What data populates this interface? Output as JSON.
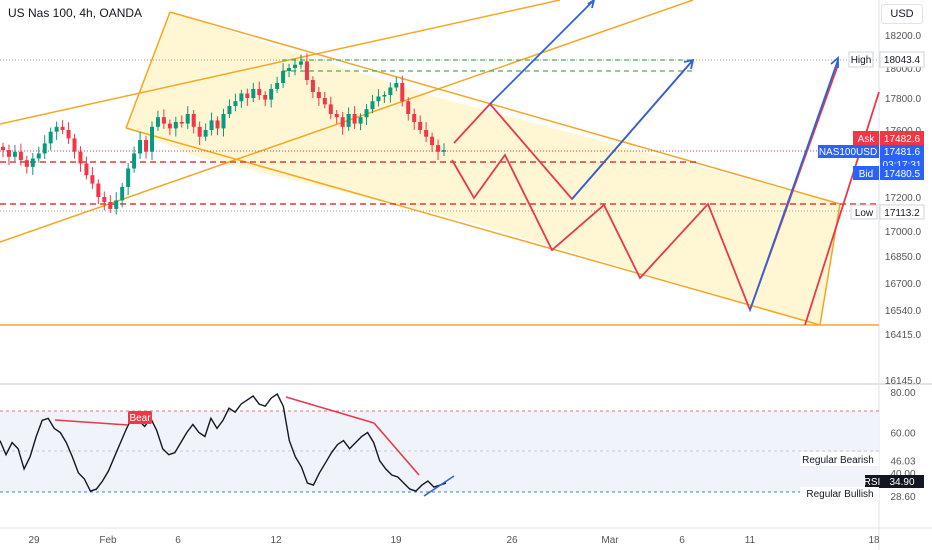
{
  "header": {
    "title": "US Nas 100, 4h, OANDA",
    "currency": "USD"
  },
  "price_axis": {
    "ticks": [
      "18200.0",
      "18000.0",
      "17800.0",
      "17600.0",
      "17200.0",
      "17000.0",
      "16850.0",
      "16700.0",
      "16540.0",
      "16415.0",
      "16145.0"
    ]
  },
  "rsi_axis": {
    "ticks": [
      "80.00",
      "60.00",
      "46.03",
      "40.00",
      "28.60"
    ]
  },
  "time_axis": {
    "ticks": [
      "29",
      "Feb",
      "6",
      "12",
      "19",
      "26",
      "Mar",
      "6",
      "11",
      "18"
    ]
  },
  "labels": {
    "high_tag": "High",
    "high_value": "18043.4",
    "ask_tag": "Ask",
    "ask_value": "17482.6",
    "symbol": "NAS100USD",
    "last_value": "17481.6",
    "countdown": "03:17:31",
    "bid_tag": "Bid",
    "bid_value": "17480.5",
    "low_tag": "Low",
    "low_value": "17113.2",
    "bear": "Bear",
    "regular_bearish": "Regular Bearish",
    "rsi_tag": "RSI",
    "rsi_value": "34.90",
    "regular_bullish": "Regular Bullish"
  },
  "colors": {
    "up": "#089981",
    "down": "#f23645",
    "channel": "#f5a623",
    "channel_fill": "#fff6cc",
    "projection_red": "#e8394a",
    "projection_blue": "#2f62d8",
    "dash_red": "#e53935",
    "dash_green": "#4caf50",
    "rsi_line": "#131722"
  },
  "chart_data": {
    "type": "candlestick",
    "symbol": "NAS100USD",
    "timeframe": "4h",
    "source": "OANDA",
    "price_range": [
      16145,
      18200
    ],
    "last_price": 17481.6,
    "high": 18043.4,
    "low": 17113.2,
    "ask": 17482.6,
    "bid": 17480.5,
    "candles_close": [
      17480,
      17440,
      17470,
      17420,
      17380,
      17430,
      17460,
      17520,
      17590,
      17620,
      17600,
      17550,
      17470,
      17400,
      17330,
      17280,
      17200,
      17170,
      17130,
      17180,
      17260,
      17370,
      17460,
      17540,
      17470,
      17620,
      17680,
      17640,
      17610,
      17650,
      17640,
      17700,
      17620,
      17560,
      17600,
      17660,
      17610,
      17700,
      17750,
      17780,
      17830,
      17800,
      17860,
      17820,
      17790,
      17860,
      17900,
      17980,
      18000,
      18020,
      18040,
      17920,
      17840,
      17800,
      17760,
      17700,
      17680,
      17620,
      17700,
      17640,
      17680,
      17730,
      17780,
      17810,
      17820,
      17870,
      17900,
      17780,
      17700,
      17650,
      17600,
      17560,
      17510,
      17470,
      17480
    ],
    "rsi": {
      "range": [
        20,
        85
      ],
      "levels": [
        80,
        60,
        46.03,
        40,
        28.6
      ],
      "last": 34.9,
      "values": [
        56,
        49,
        55,
        52,
        42,
        48,
        58,
        66,
        67,
        62,
        60,
        55,
        48,
        40,
        37,
        31,
        32,
        36,
        41,
        48,
        55,
        62,
        68,
        66,
        63,
        67,
        61,
        52,
        49,
        50,
        55,
        60,
        64,
        60,
        58,
        67,
        62,
        66,
        72,
        70,
        74,
        76,
        78,
        74,
        73,
        77,
        79,
        73,
        56,
        48,
        43,
        35,
        34,
        40,
        45,
        50,
        54,
        56,
        52,
        55,
        58,
        60,
        55,
        46,
        42,
        39,
        38,
        35,
        32,
        31,
        34,
        36,
        33,
        34,
        35
      ]
    },
    "levels_dashed_red": [
      17430,
      17150
    ],
    "levels_dashed_green": [
      18043,
      17975
    ],
    "level_solid": 16445
  }
}
